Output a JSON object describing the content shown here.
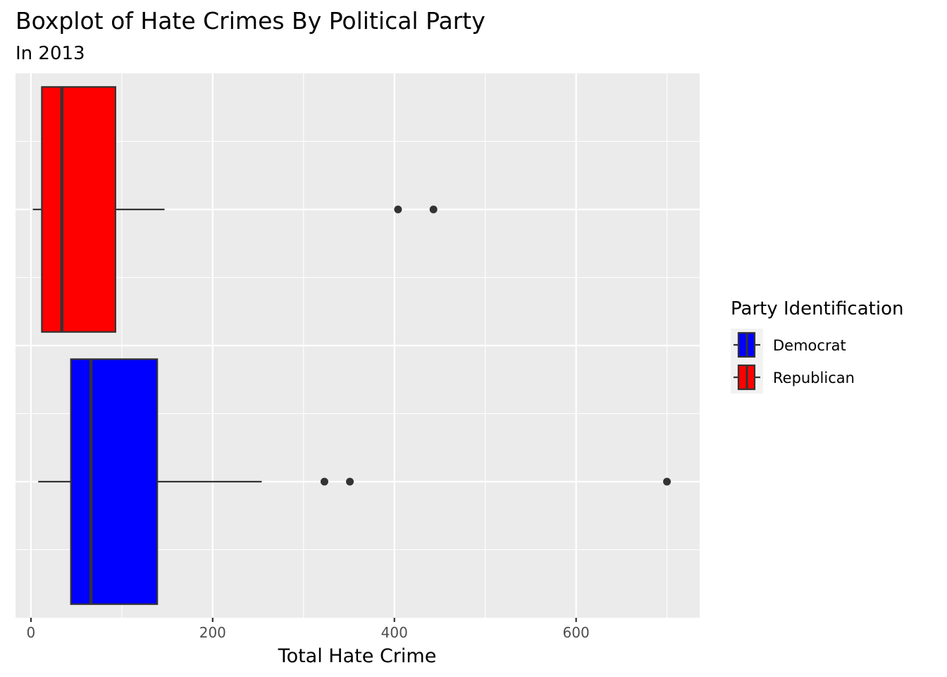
{
  "chart_data": {
    "type": "boxplot",
    "orientation": "horizontal",
    "title": "Boxplot of Hate Crimes By Political Party",
    "subtitle": "In 2013",
    "xlabel": "Total Hate Crime",
    "ylabel": "",
    "xlim": [
      -17,
      736
    ],
    "x_ticks": [
      0,
      200,
      400,
      600
    ],
    "x_tick_labels": [
      "0",
      "200",
      "400",
      "600"
    ],
    "grid": true,
    "legend": {
      "title": "Party Identification",
      "position": "right",
      "entries": [
        "Democrat",
        "Republican"
      ]
    },
    "series": [
      {
        "name": "Democrat",
        "color": "#0000ff",
        "whisker_low": 8,
        "q1": 44,
        "median": 66,
        "q3": 139,
        "whisker_high": 254,
        "outliers": [
          323,
          351,
          700
        ]
      },
      {
        "name": "Republican",
        "color": "#ff0000",
        "whisker_low": 2,
        "q1": 12,
        "median": 34,
        "q3": 93,
        "whisker_high": 147,
        "outliers": [
          404,
          443
        ]
      }
    ]
  },
  "colors": {
    "panel_background": "#ebebeb",
    "grid": "#ffffff",
    "box_outline": "#333333",
    "outlier": "#333333"
  }
}
